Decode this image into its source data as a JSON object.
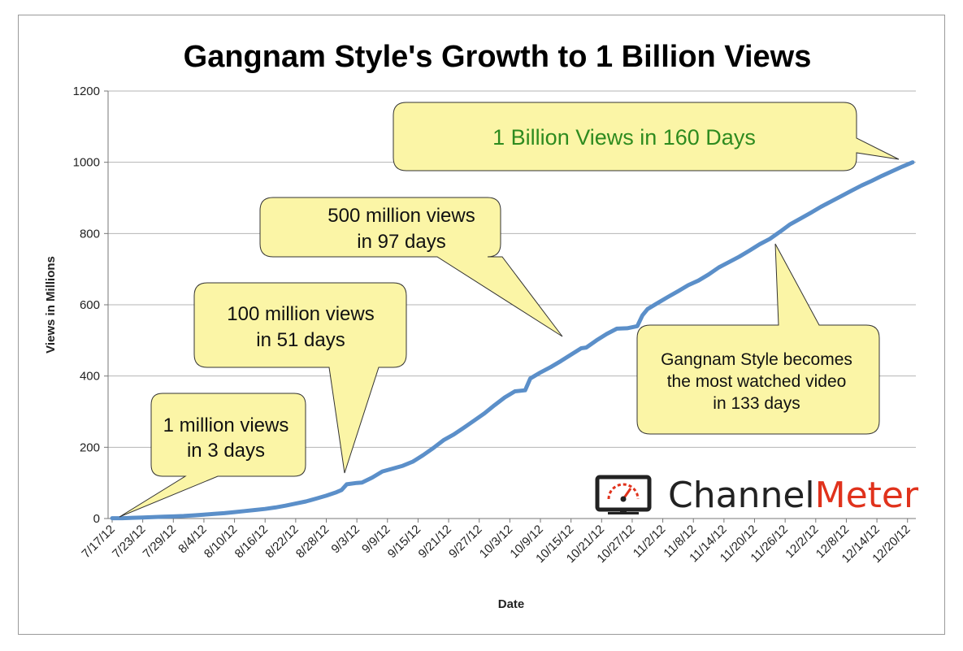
{
  "chart_data": {
    "type": "line",
    "title": "Gangnam Style's Growth to 1 Billion Views",
    "xlabel": "Date",
    "ylabel": "Views in Millions",
    "ylim": [
      0,
      1200
    ],
    "yticks": [
      0,
      200,
      400,
      600,
      800,
      1000,
      1200
    ],
    "grid": "horizontal",
    "line_color": "#5b8fc9",
    "x_tick_labels": [
      "7/17/12",
      "7/23/12",
      "7/29/12",
      "8/4/12",
      "8/10/12",
      "8/16/12",
      "8/22/12",
      "8/28/12",
      "9/3/12",
      "9/9/12",
      "9/15/12",
      "9/21/12",
      "9/27/12",
      "10/3/12",
      "10/9/12",
      "10/15/12",
      "10/21/12",
      "10/27/12",
      "11/2/12",
      "11/8/12",
      "11/14/12",
      "11/20/12",
      "11/26/12",
      "12/2/12",
      "12/8/12",
      "12/14/12",
      "12/20/12"
    ],
    "series": [
      {
        "points": [
          [
            "7/17/12",
            1
          ],
          [
            "7/19/12",
            1
          ],
          [
            "7/21/12",
            2
          ],
          [
            "7/23/12",
            3
          ],
          [
            "7/25/12",
            4
          ],
          [
            "7/27/12",
            5
          ],
          [
            "7/29/12",
            6
          ],
          [
            "7/31/12",
            7
          ],
          [
            "8/2/12",
            9
          ],
          [
            "8/4/12",
            11
          ],
          [
            "8/6/12",
            13
          ],
          [
            "8/8/12",
            15
          ],
          [
            "8/10/12",
            18
          ],
          [
            "8/12/12",
            21
          ],
          [
            "8/14/12",
            24
          ],
          [
            "8/16/12",
            27
          ],
          [
            "8/18/12",
            31
          ],
          [
            "8/20/12",
            36
          ],
          [
            "8/22/12",
            42
          ],
          [
            "8/24/12",
            48
          ],
          [
            "8/26/12",
            56
          ],
          [
            "8/28/12",
            64
          ],
          [
            "8/30/12",
            74
          ],
          [
            "8/31/12",
            80
          ],
          [
            "9/1/12",
            96
          ],
          [
            "9/3/12",
            100
          ],
          [
            "9/4/12",
            101
          ],
          [
            "9/6/12",
            115
          ],
          [
            "9/8/12",
            132
          ],
          [
            "9/10/12",
            140
          ],
          [
            "9/12/12",
            148
          ],
          [
            "9/14/12",
            160
          ],
          [
            "9/16/12",
            178
          ],
          [
            "9/18/12",
            198
          ],
          [
            "9/20/12",
            220
          ],
          [
            "9/22/12",
            236
          ],
          [
            "9/24/12",
            255
          ],
          [
            "9/26/12",
            275
          ],
          [
            "9/28/12",
            295
          ],
          [
            "9/30/12",
            318
          ],
          [
            "10/2/12",
            340
          ],
          [
            "10/4/12",
            357
          ],
          [
            "10/6/12",
            360
          ],
          [
            "10/7/12",
            393
          ],
          [
            "10/9/12",
            410
          ],
          [
            "10/11/12",
            425
          ],
          [
            "10/13/12",
            442
          ],
          [
            "10/15/12",
            460
          ],
          [
            "10/17/12",
            478
          ],
          [
            "10/18/12",
            480
          ],
          [
            "10/20/12",
            500
          ],
          [
            "10/22/12",
            518
          ],
          [
            "10/24/12",
            533
          ],
          [
            "10/26/12",
            534
          ],
          [
            "10/28/12",
            540
          ],
          [
            "10/29/12",
            570
          ],
          [
            "10/30/12",
            588
          ],
          [
            "11/1/12",
            605
          ],
          [
            "11/3/12",
            622
          ],
          [
            "11/5/12",
            638
          ],
          [
            "11/7/12",
            655
          ],
          [
            "11/9/12",
            668
          ],
          [
            "11/11/12",
            685
          ],
          [
            "11/13/12",
            705
          ],
          [
            "11/15/12",
            720
          ],
          [
            "11/17/12",
            735
          ],
          [
            "11/19/12",
            752
          ],
          [
            "11/21/12",
            770
          ],
          [
            "11/23/12",
            785
          ],
          [
            "11/25/12",
            805
          ],
          [
            "11/27/12",
            826
          ],
          [
            "11/29/12",
            842
          ],
          [
            "12/1/12",
            858
          ],
          [
            "12/3/12",
            875
          ],
          [
            "12/5/12",
            890
          ],
          [
            "12/7/12",
            905
          ],
          [
            "12/9/12",
            920
          ],
          [
            "12/11/12",
            935
          ],
          [
            "12/13/12",
            948
          ],
          [
            "12/15/12",
            962
          ],
          [
            "12/17/12",
            975
          ],
          [
            "12/19/12",
            988
          ],
          [
            "12/21/12",
            1000
          ]
        ]
      }
    ],
    "annotations": [
      {
        "id": "callout-1m",
        "lines": [
          "1 million views",
          "in 3 days"
        ],
        "target": [
          "7/19/12",
          1
        ]
      },
      {
        "id": "callout-100m",
        "lines": [
          "100 million views",
          "in 51 days"
        ],
        "target": [
          "9/1/12",
          96
        ]
      },
      {
        "id": "callout-500m",
        "lines": [
          "500 million views",
          "in 97 days"
        ],
        "target": [
          "10/15/12",
          490
        ]
      },
      {
        "id": "callout-most",
        "lines": [
          "Gangnam Style becomes",
          "the most watched video",
          "in 133 days"
        ],
        "target": [
          "11/26/12",
          790
        ]
      },
      {
        "id": "callout-1b",
        "lines": [
          "1 Billion Views in 160 Days"
        ],
        "target": [
          "12/21/12",
          1000
        ]
      }
    ]
  },
  "logo": {
    "part1": "Channel",
    "part2": "Meter",
    "color_dark": "#222222",
    "color_accent": "#e0321c"
  },
  "callout_fill": "#fbf5a6"
}
